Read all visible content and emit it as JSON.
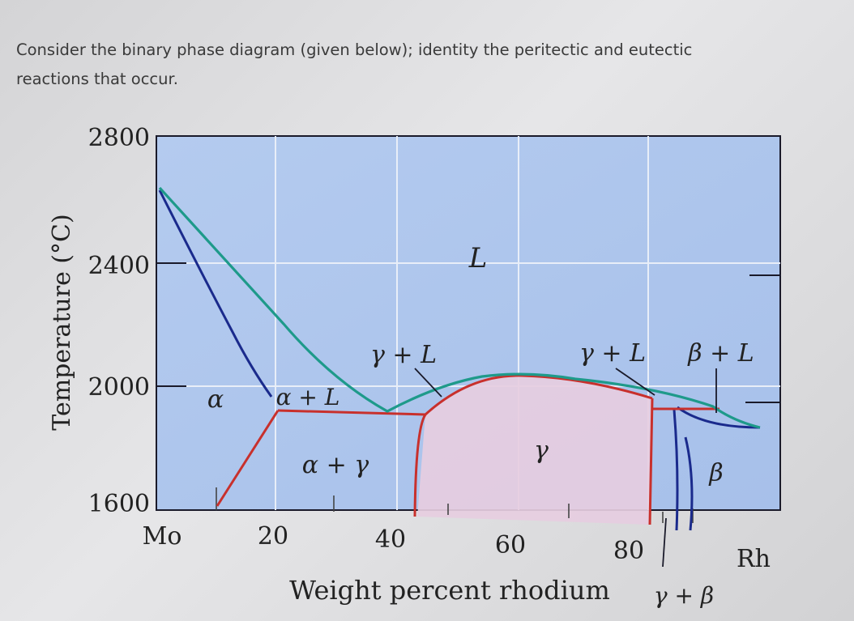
{
  "question": {
    "line1": "Consider the binary phase diagram (given below); identity the peritectic and eutectic",
    "line2": "reactions that occur."
  },
  "diagram": {
    "y_axis_label": "Temperature (°C)",
    "x_axis_label": "Weight percent rhodium",
    "y_ticks": [
      "2800",
      "2400",
      "2000",
      "1600"
    ],
    "x_ticks": [
      "20",
      "40",
      "60",
      "80"
    ],
    "x_left_end": "Mo",
    "x_right_end": "Rh",
    "regions": {
      "liquid": "L",
      "alpha": "α",
      "alpha_liquid": "α + L",
      "alpha_gamma": "α + γ",
      "gamma_liquid_left": "γ + L",
      "gamma": "γ",
      "gamma_liquid_right": "γ + L",
      "beta_liquid": "β + L",
      "beta": "β",
      "gamma_beta": "γ + β"
    },
    "colors": {
      "background": "#aec6ec",
      "liquidus": "#1e9a8a",
      "solvus_blue": "#1a2a8c",
      "phase_red": "#c8302c",
      "gamma_fill": "#e8cfe0"
    }
  }
}
